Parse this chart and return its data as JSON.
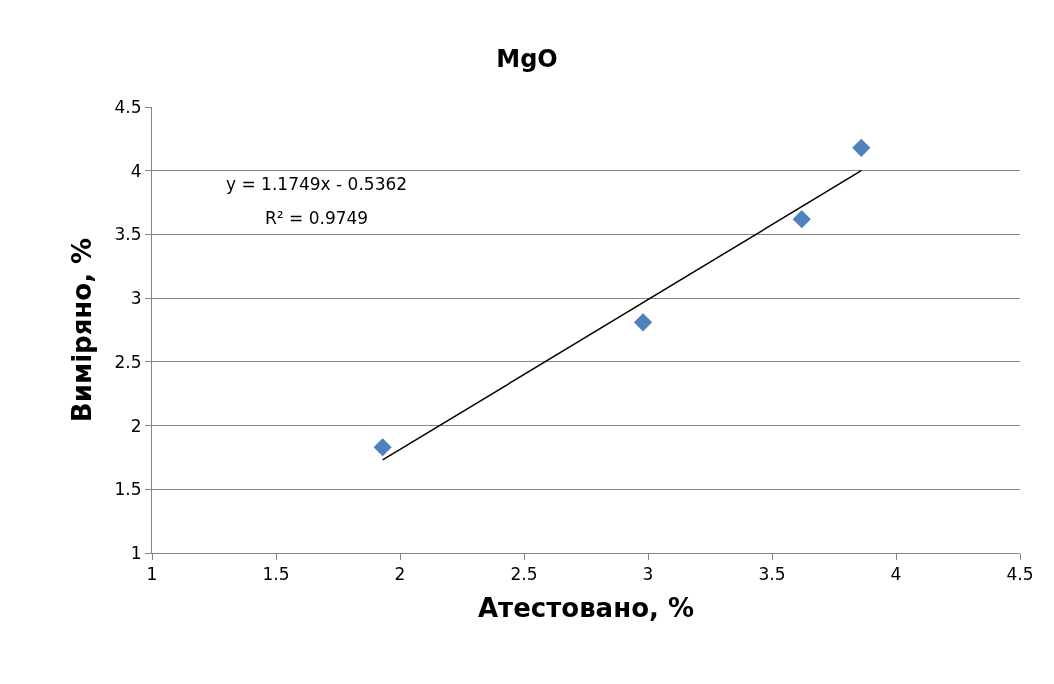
{
  "chart_data": {
    "type": "scatter",
    "title": "MgO",
    "xlabel": "Атестовано, %",
    "ylabel": "Виміряно, %",
    "series": [
      {
        "color": "#4f81bd",
        "x": [
          1.93,
          2.98,
          3.62,
          3.86
        ],
        "values": [
          1.83,
          2.81,
          3.62,
          4.18
        ]
      },
      {
        "type": "line",
        "color": "#000000",
        "marker": "none",
        "x": [
          1.93,
          3.86
        ],
        "values": [
          1.73,
          4.0
        ]
      }
    ],
    "annotations": [
      "y = 1.1749x - 0.5362",
      "R² = 0.9749"
    ],
    "marker": "diamond",
    "line_style": "solid",
    "grid": "y",
    "xlim": [
      1,
      4.5
    ],
    "xticks": [
      1,
      1.5,
      2,
      2.5,
      3,
      3.5,
      4,
      4.5
    ],
    "ylim": [
      1,
      4.5
    ],
    "yticks": [
      1,
      1.5,
      2,
      2.5,
      3,
      3.5,
      4,
      4.5
    ]
  }
}
